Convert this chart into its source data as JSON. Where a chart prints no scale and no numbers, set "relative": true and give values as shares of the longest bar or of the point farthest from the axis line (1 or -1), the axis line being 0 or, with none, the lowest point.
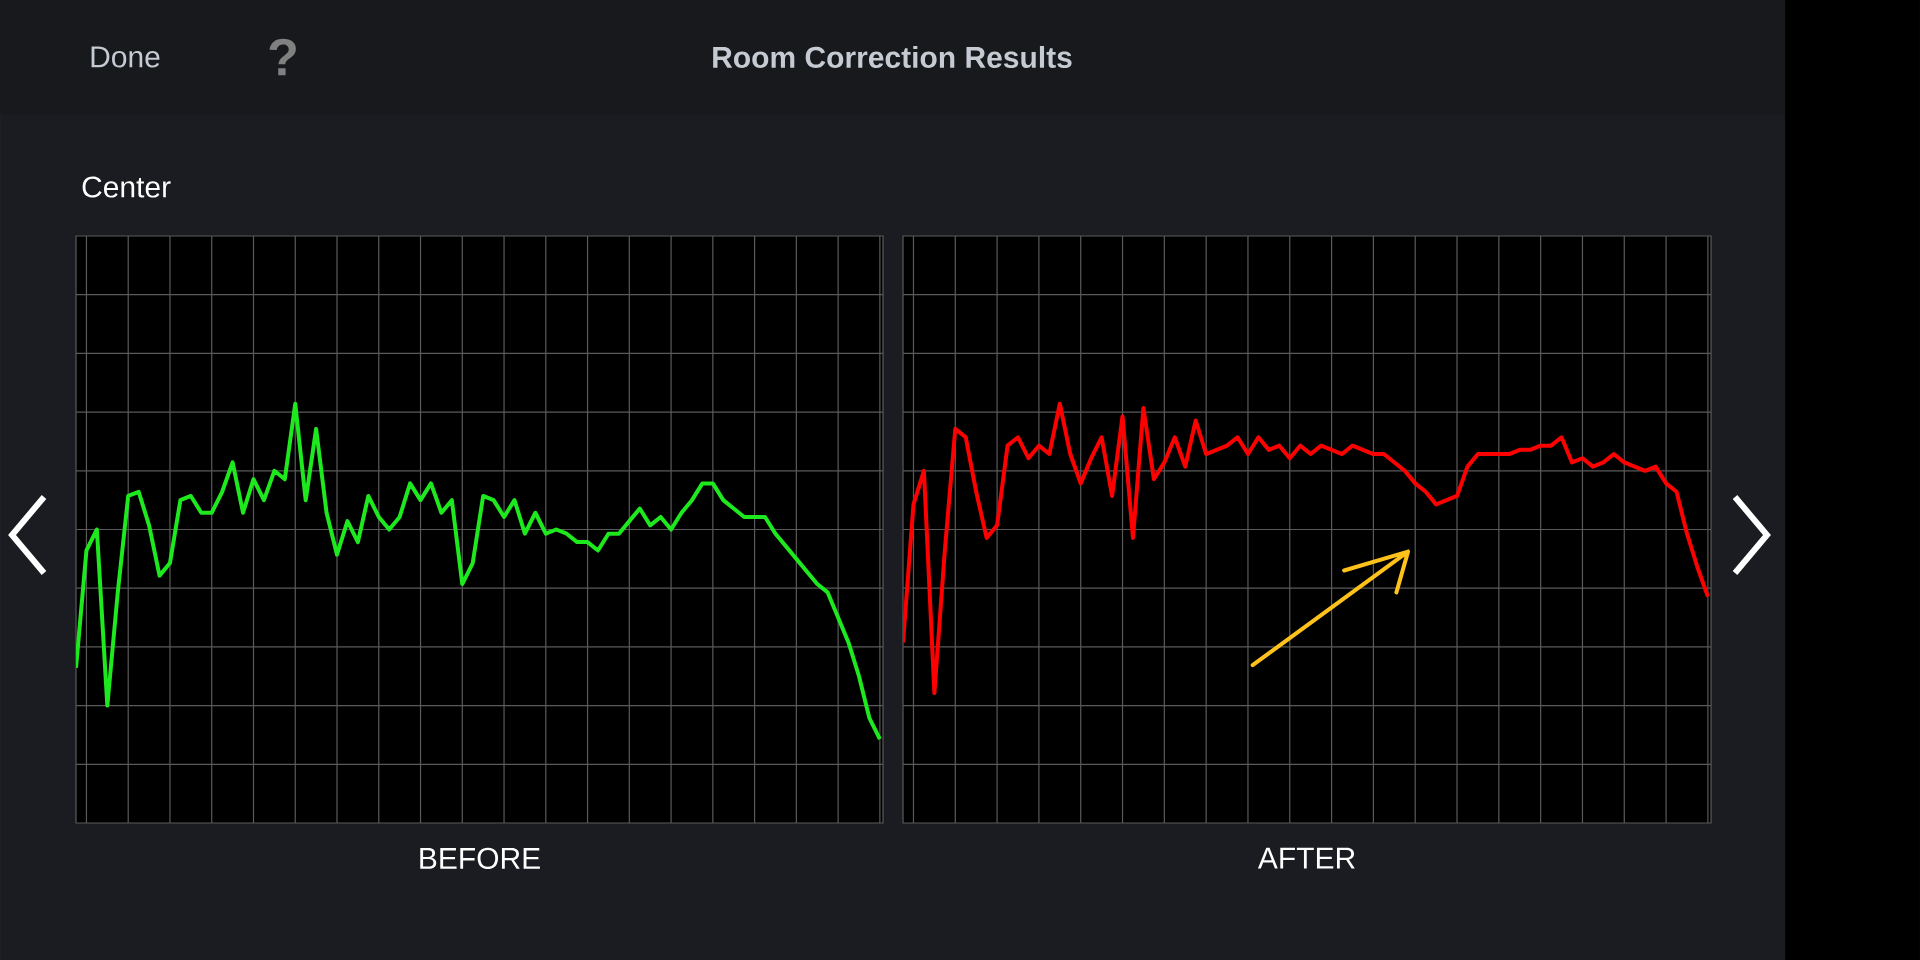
{
  "chart_data": [
    {
      "type": "other",
      "title": "Room Correction Results",
      "subtitle": "Center",
      "annotations": [
        "Done",
        "?"
      ]
    },
    {
      "type": "line",
      "xlabel": "BEFORE",
      "relative": true,
      "grid": true,
      "categories": [
        null,
        null,
        null,
        null,
        null,
        null,
        null,
        null,
        null,
        null,
        null,
        null,
        null,
        null,
        null,
        null,
        null,
        null,
        null,
        null,
        null,
        null,
        null,
        null,
        null,
        null,
        null,
        null,
        null,
        null,
        null,
        null,
        null,
        null,
        null,
        null,
        null,
        null,
        null,
        null,
        null,
        null,
        null,
        null,
        null,
        null,
        null,
        null,
        null,
        null,
        null,
        null,
        null,
        null,
        null,
        null,
        null,
        null,
        null,
        null,
        null,
        null,
        null,
        null,
        null,
        null,
        null,
        null,
        null,
        null,
        null,
        null,
        null,
        null,
        null,
        null,
        null,
        null
      ],
      "series": [
        {
          "color": "#1ee81e",
          "values": [
            0.37,
            0.65,
            0.7,
            0.28,
            0.55,
            0.78,
            0.79,
            0.71,
            0.59,
            0.62,
            0.77,
            0.78,
            0.74,
            0.74,
            0.79,
            0.86,
            0.74,
            0.82,
            0.77,
            0.84,
            0.82,
            1.0,
            0.77,
            0.94,
            0.74,
            0.64,
            0.72,
            0.67,
            0.78,
            0.73,
            0.7,
            0.73,
            0.81,
            0.77,
            0.81,
            0.74,
            0.77,
            0.57,
            0.62,
            0.78,
            0.77,
            0.73,
            0.77,
            0.69,
            0.74,
            0.69,
            0.7,
            0.69,
            0.67,
            0.67,
            0.65,
            0.69,
            0.69,
            0.72,
            0.75,
            0.71,
            0.73,
            0.7,
            0.74,
            0.77,
            0.81,
            0.81,
            0.77,
            0.75,
            0.73,
            0.73,
            0.73,
            0.69,
            0.66,
            0.63,
            0.6,
            0.57,
            0.55,
            0.49,
            0.43,
            0.35,
            0.25,
            0.2
          ]
        }
      ]
    },
    {
      "type": "line",
      "xlabel": "AFTER",
      "relative": true,
      "grid": true,
      "categories": [
        null,
        null,
        null,
        null,
        null,
        null,
        null,
        null,
        null,
        null,
        null,
        null,
        null,
        null,
        null,
        null,
        null,
        null,
        null,
        null,
        null,
        null,
        null,
        null,
        null,
        null,
        null,
        null,
        null,
        null,
        null,
        null,
        null,
        null,
        null,
        null,
        null,
        null,
        null,
        null,
        null,
        null,
        null,
        null,
        null,
        null,
        null,
        null,
        null,
        null,
        null,
        null,
        null,
        null,
        null,
        null,
        null,
        null,
        null,
        null,
        null,
        null,
        null,
        null,
        null,
        null,
        null,
        null,
        null,
        null,
        null,
        null,
        null,
        null,
        null,
        null,
        null,
        null
      ],
      "series": [
        {
          "color": "#ff0000",
          "values": [
            0.43,
            0.76,
            0.84,
            0.31,
            0.65,
            0.94,
            0.92,
            0.79,
            0.68,
            0.71,
            0.9,
            0.92,
            0.87,
            0.9,
            0.88,
            1.0,
            0.88,
            0.81,
            0.87,
            0.92,
            0.78,
            0.97,
            0.68,
            0.99,
            0.82,
            0.86,
            0.92,
            0.85,
            0.96,
            0.88,
            0.89,
            0.9,
            0.92,
            0.88,
            0.92,
            0.89,
            0.9,
            0.87,
            0.9,
            0.88,
            0.9,
            0.89,
            0.88,
            0.9,
            0.89,
            0.88,
            0.88,
            0.86,
            0.84,
            0.81,
            0.79,
            0.76,
            0.77,
            0.78,
            0.85,
            0.88,
            0.88,
            0.88,
            0.88,
            0.89,
            0.89,
            0.9,
            0.9,
            0.92,
            0.86,
            0.87,
            0.85,
            0.86,
            0.88,
            0.86,
            0.85,
            0.84,
            0.85,
            0.81,
            0.79,
            0.69,
            0.61,
            0.54
          ]
        }
      ]
    }
  ]
}
